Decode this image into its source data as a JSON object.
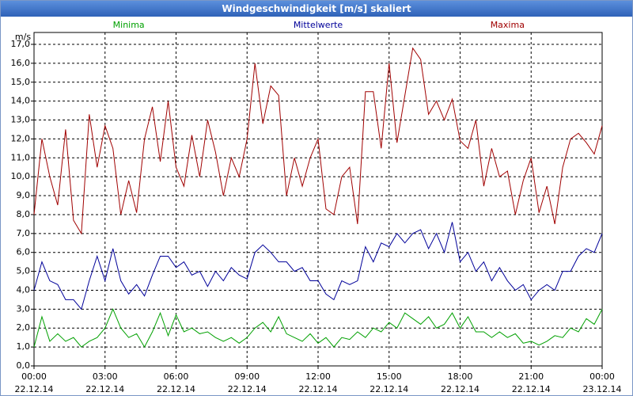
{
  "chart_data": {
    "type": "line",
    "title": "Windgeschwindigkeit [m/s] skaliert",
    "y_unit": "m/s",
    "grid": true,
    "legend_position": "top",
    "xlim": [
      0,
      1440
    ],
    "xticks": [
      {
        "value": 0,
        "label": "00:00",
        "date": "22.12.14"
      },
      {
        "value": 180,
        "label": "03:00",
        "date": "22.12.14"
      },
      {
        "value": 360,
        "label": "06:00",
        "date": "22.12.14"
      },
      {
        "value": 540,
        "label": "09:00",
        "date": "22.12.14"
      },
      {
        "value": 720,
        "label": "12:00",
        "date": "22.12.14"
      },
      {
        "value": 900,
        "label": "15:00",
        "date": "22.12.14"
      },
      {
        "value": 1080,
        "label": "18:00",
        "date": "22.12.14"
      },
      {
        "value": 1260,
        "label": "21:00",
        "date": "22.12.14"
      },
      {
        "value": 1440,
        "label": "00:00",
        "date": "23.12.14"
      }
    ],
    "ylim": [
      0,
      17
    ],
    "yticks": [
      {
        "value": 0,
        "label": "0,0"
      },
      {
        "value": 1,
        "label": "1,0"
      },
      {
        "value": 2,
        "label": "2,0"
      },
      {
        "value": 3,
        "label": "3,0"
      },
      {
        "value": 4,
        "label": "4,0"
      },
      {
        "value": 5,
        "label": "5,0"
      },
      {
        "value": 6,
        "label": "6,0"
      },
      {
        "value": 7,
        "label": "7,0"
      },
      {
        "value": 8,
        "label": "8,0"
      },
      {
        "value": 9,
        "label": "9,0"
      },
      {
        "value": 10,
        "label": "10,0"
      },
      {
        "value": 11,
        "label": "11,0"
      },
      {
        "value": 12,
        "label": "12,0"
      },
      {
        "value": 13,
        "label": "13,0"
      },
      {
        "value": 14,
        "label": "14,0"
      },
      {
        "value": 15,
        "label": "15,0"
      },
      {
        "value": 16,
        "label": "16,0"
      },
      {
        "value": 17,
        "label": "17,0"
      }
    ],
    "x": [
      0,
      20,
      40,
      60,
      80,
      100,
      120,
      140,
      160,
      180,
      200,
      220,
      240,
      260,
      280,
      300,
      320,
      340,
      360,
      380,
      400,
      420,
      440,
      460,
      480,
      500,
      520,
      540,
      560,
      580,
      600,
      620,
      640,
      660,
      680,
      700,
      720,
      740,
      760,
      780,
      800,
      820,
      840,
      860,
      880,
      900,
      920,
      940,
      960,
      980,
      1000,
      1020,
      1040,
      1060,
      1080,
      1100,
      1120,
      1140,
      1160,
      1180,
      1200,
      1220,
      1240,
      1260,
      1280,
      1300,
      1320,
      1340,
      1360,
      1380,
      1400,
      1420,
      1440
    ],
    "series": [
      {
        "name": "Minima",
        "color": "#00a000",
        "values": [
          1,
          2.6,
          1.3,
          1.7,
          1.3,
          1.5,
          1,
          1.3,
          1.5,
          2,
          3,
          2,
          1.5,
          1.7,
          1,
          1.8,
          2.8,
          1.6,
          2.7,
          1.8,
          2,
          1.7,
          1.8,
          1.5,
          1.3,
          1.5,
          1.2,
          1.5,
          2,
          2.3,
          1.8,
          2.6,
          1.7,
          1.5,
          1.3,
          1.7,
          1.2,
          1.5,
          1,
          1.5,
          1.4,
          1.8,
          1.5,
          2,
          1.8,
          2.3,
          2,
          2.8,
          2.5,
          2.2,
          2.6,
          2,
          2.2,
          2.8,
          2,
          2.6,
          1.8,
          1.8,
          1.5,
          1.8,
          1.5,
          1.7,
          1.2,
          1.3,
          1.1,
          1.3,
          1.6,
          1.5,
          2,
          1.8,
          2.5,
          2.2,
          3
        ]
      },
      {
        "name": "Mittelwerte",
        "color": "#000099",
        "values": [
          4,
          5.5,
          4.5,
          4.3,
          3.5,
          3.5,
          3,
          4.5,
          5.8,
          4.5,
          6.2,
          4.5,
          3.8,
          4.3,
          3.7,
          4.8,
          5.8,
          5.8,
          5.2,
          5.5,
          4.8,
          5,
          4.2,
          5,
          4.5,
          5.2,
          4.8,
          4.6,
          6,
          6.4,
          6,
          5.5,
          5.5,
          5,
          5.2,
          4.5,
          4.5,
          3.8,
          3.5,
          4.5,
          4.3,
          4.5,
          6.3,
          5.5,
          6.5,
          6.3,
          7,
          6.5,
          7,
          7.2,
          6.2,
          7,
          6,
          7.6,
          5.5,
          6,
          5,
          5.5,
          4.5,
          5.2,
          4.5,
          4,
          4.3,
          3.5,
          4,
          4.3,
          4,
          5,
          5,
          5.8,
          6.2,
          6,
          7
        ]
      },
      {
        "name": "Maxima",
        "color": "#a00000",
        "values": [
          8,
          12,
          10,
          8.5,
          12.5,
          7.7,
          7,
          13.3,
          10.5,
          12.7,
          11.5,
          8,
          9.8,
          8.1,
          12,
          13.7,
          10.8,
          14,
          10.5,
          9.5,
          12.2,
          10,
          13,
          11.3,
          9,
          11,
          10,
          12,
          16,
          12.8,
          14.8,
          14.3,
          9,
          11,
          9.5,
          11,
          12,
          8.3,
          8,
          10,
          10.5,
          7.5,
          14.5,
          14.5,
          11.5,
          16,
          11.8,
          14.3,
          16.8,
          16.2,
          13.3,
          14,
          13,
          14.1,
          11.9,
          11.5,
          13,
          9.5,
          11.5,
          10,
          10.3,
          8,
          9.8,
          11,
          8.1,
          9.5,
          7.5,
          10.5,
          12,
          12.3,
          11.8,
          11.2,
          12.7
        ]
      }
    ]
  }
}
